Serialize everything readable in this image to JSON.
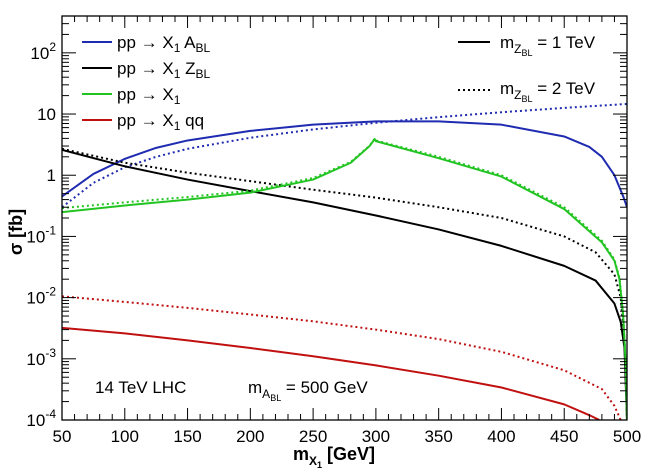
{
  "chart_data": {
    "type": "line",
    "x_axis": {
      "title_main": "m",
      "title_sub": "X",
      "title_subsub": "1",
      "title_unit": " [GeV]",
      "range": [
        50,
        500
      ],
      "ticks": [
        50,
        100,
        150,
        200,
        250,
        300,
        350,
        400,
        450,
        500
      ],
      "scale": "linear"
    },
    "y_axis": {
      "title": "σ [fb]",
      "range": [
        0.0001,
        400
      ],
      "scale": "log",
      "ticks": [
        {
          "value": 0.0001,
          "base": "10",
          "exp": "-4"
        },
        {
          "value": 0.001,
          "base": "10",
          "exp": "-3"
        },
        {
          "value": 0.01,
          "base": "10",
          "exp": "-2"
        },
        {
          "value": 0.1,
          "base": "10",
          "exp": "-1"
        },
        {
          "value": 1,
          "base": "1",
          "exp": ""
        },
        {
          "value": 10,
          "base": "10",
          "exp": ""
        },
        {
          "value": 100,
          "base": "10",
          "exp": "2"
        }
      ]
    },
    "legend_left": [
      {
        "pre": "pp → X",
        "sub1": "1",
        "mid": " A",
        "sub2": "BL",
        "post": "",
        "color": "#1f2bb0"
      },
      {
        "pre": "pp → X",
        "sub1": "1",
        "mid": " Z",
        "sub2": "BL",
        "post": "",
        "color": "#000000"
      },
      {
        "pre": "pp → X",
        "sub1": "1",
        "mid": "",
        "sub2": "",
        "post": "",
        "color": "#22c422"
      },
      {
        "pre": "pp → X",
        "sub1": "1",
        "mid": " qq",
        "sub2": "",
        "post": "",
        "color": "#c01010"
      }
    ],
    "legend_right": [
      {
        "main": "m",
        "sub": "Z",
        "subsub": "BL",
        "value": " = 1 TeV",
        "style": "solid"
      },
      {
        "main": "m",
        "sub": "Z",
        "subsub": "BL",
        "value": " = 2 TeV",
        "style": "dotted"
      }
    ],
    "annotations": {
      "collider": "14 TeV LHC",
      "mass_main": "m",
      "mass_sub": "A",
      "mass_subsub": "BL",
      "mass_value": " = 500 GeV"
    },
    "series": [
      {
        "name": "pp → X1 ABL, mZBL = 1 TeV",
        "color": "#1f2bb0",
        "style": "solid",
        "x": [
          50,
          75,
          100,
          125,
          150,
          200,
          250,
          300,
          350,
          400,
          450,
          470,
          480,
          490,
          497,
          500
        ],
        "y": [
          0.45,
          1.05,
          1.85,
          2.8,
          3.7,
          5.3,
          6.7,
          7.6,
          7.6,
          6.7,
          4.3,
          2.9,
          2.0,
          1.0,
          0.45,
          0.3
        ]
      },
      {
        "name": "pp → X1 ABL, mZBL = 2 TeV",
        "color": "#1f2bb0",
        "style": "dotted",
        "x": [
          50,
          75,
          100,
          125,
          150,
          200,
          250,
          300,
          350,
          400,
          450,
          500
        ],
        "y": [
          0.3,
          0.75,
          1.35,
          2.0,
          2.7,
          4.1,
          5.6,
          7.2,
          8.9,
          10.7,
          12.6,
          14.6
        ]
      },
      {
        "name": "pp → X1 ZBL, mZBL = 1 TeV",
        "color": "#000000",
        "style": "solid",
        "x": [
          50,
          100,
          150,
          200,
          250,
          300,
          350,
          400,
          450,
          475,
          490,
          495,
          498,
          500
        ],
        "y": [
          2.6,
          1.4,
          0.85,
          0.55,
          0.36,
          0.22,
          0.13,
          0.07,
          0.033,
          0.019,
          0.008,
          0.004,
          0.0015,
          0.0001
        ]
      },
      {
        "name": "pp → X1 ZBL, mZBL = 2 TeV",
        "color": "#000000",
        "style": "dotted",
        "x": [
          50,
          100,
          150,
          200,
          250,
          300,
          350,
          400,
          450,
          475,
          490,
          495,
          498,
          500
        ],
        "y": [
          2.7,
          1.6,
          1.1,
          0.8,
          0.58,
          0.43,
          0.3,
          0.2,
          0.1,
          0.055,
          0.024,
          0.01,
          0.002,
          0.0001
        ]
      },
      {
        "name": "pp → X1, mZBL = 1 TeV",
        "color": "#22c422",
        "style": "solid",
        "x": [
          50,
          100,
          150,
          200,
          250,
          280,
          295,
          299,
          300,
          350,
          400,
          450,
          480,
          490,
          494,
          497,
          499,
          500
        ],
        "y": [
          0.25,
          0.32,
          0.4,
          0.52,
          0.85,
          1.6,
          3.0,
          3.9,
          3.6,
          1.9,
          0.95,
          0.28,
          0.08,
          0.04,
          0.02,
          0.005,
          0.0008,
          0.0001
        ]
      },
      {
        "name": "pp → X1, mZBL = 2 TeV",
        "color": "#22c422",
        "style": "dotted",
        "x": [
          50,
          100,
          150,
          200,
          250,
          280,
          295,
          299,
          300,
          350,
          400,
          450,
          480,
          490,
          494,
          497,
          499,
          500
        ],
        "y": [
          0.29,
          0.36,
          0.44,
          0.56,
          0.9,
          1.65,
          3.05,
          3.95,
          3.7,
          2.0,
          1.0,
          0.3,
          0.085,
          0.042,
          0.021,
          0.005,
          0.0008,
          0.0001
        ]
      },
      {
        "name": "pp → X1 qq, mZBL = 1 TeV",
        "color": "#c01010",
        "style": "solid",
        "x": [
          50,
          100,
          150,
          200,
          250,
          300,
          350,
          400,
          450,
          470,
          478
        ],
        "y": [
          0.0032,
          0.0026,
          0.002,
          0.0015,
          0.0011,
          0.00078,
          0.00053,
          0.00034,
          0.00018,
          0.00012,
          0.0001
        ]
      },
      {
        "name": "pp → X1 qq, mZBL = 2 TeV",
        "color": "#c01010",
        "style": "dotted",
        "x": [
          50,
          100,
          150,
          200,
          250,
          300,
          350,
          400,
          450,
          480,
          490,
          495
        ],
        "y": [
          0.0105,
          0.0085,
          0.0068,
          0.0053,
          0.0041,
          0.003,
          0.0021,
          0.0013,
          0.00065,
          0.00032,
          0.00017,
          0.0001
        ]
      }
    ]
  }
}
